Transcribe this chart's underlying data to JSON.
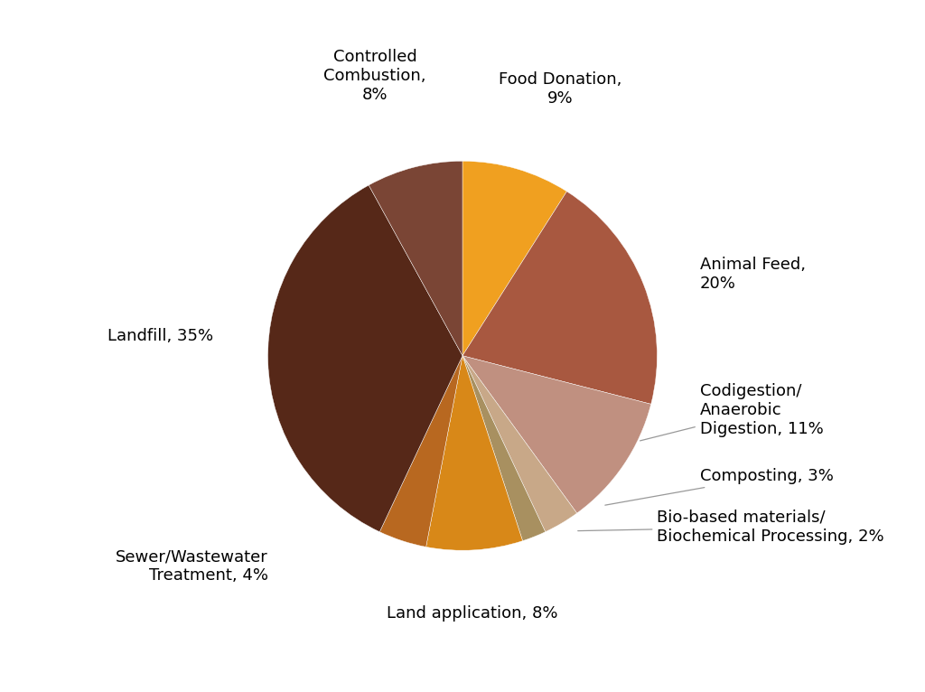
{
  "values": [
    9,
    20,
    11,
    3,
    2,
    8,
    4,
    35,
    8
  ],
  "colors": [
    "#F0A020",
    "#A85840",
    "#C09080",
    "#C8A888",
    "#A89060",
    "#D88818",
    "#B86820",
    "#562818",
    "#7A4535"
  ],
  "labels": [
    "Food Donation,\n9%",
    "Animal Feed,\n20%",
    "Codigestion/\nAnaerobic\nDigestion, 11%",
    "Composting, 3%",
    "Bio-based materials/\nBiochemical Processing, 2%",
    "Land application, 8%",
    "Sewer/Wastewater\nTreatment, 4%",
    "Landfill, 35%",
    "Controlled\nCombustion,\n8%"
  ],
  "background_color": "#ffffff",
  "font_size": 13
}
